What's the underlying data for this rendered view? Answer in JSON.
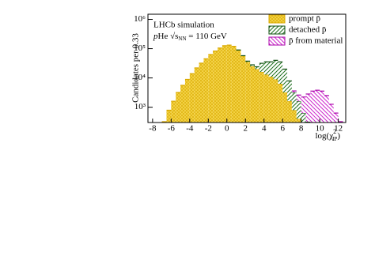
{
  "chart_data": {
    "type": "stacked_histogram",
    "annotation_lines": [
      [
        "LHCb simulation"
      ],
      [
        "p",
        "He ",
        "√s",
        "NN",
        " = 110 GeV"
      ]
    ],
    "x_label": [
      "log(χ",
      "2",
      "IP",
      ")"
    ],
    "y_label": "Candidates per 0.33",
    "bins": [
      -7,
      -6.5,
      -6,
      -5.5,
      -5,
      -4.5,
      -4,
      -3.5,
      -3,
      -2.5,
      -2,
      -1.5,
      -1,
      -0.5,
      0,
      0.5,
      1,
      1.5,
      2,
      2.5,
      3,
      3.5,
      4,
      4.5,
      5,
      5.5,
      6,
      6.5,
      7,
      7.5,
      8,
      8.5,
      9,
      9.5,
      10,
      10.5,
      11,
      11.5,
      12,
      12.5
    ],
    "series": [
      {
        "name": "prompt p̄",
        "color": "#f5d547",
        "edge": "#d9a800",
        "pattern": "cross",
        "values": [
          320,
          790,
          1600,
          3200,
          5600,
          8900,
          14000,
          22000,
          32000,
          45000,
          63000,
          83000,
          105000,
          126000,
          132000,
          120000,
          89000,
          56000,
          35000,
          25000,
          20000,
          16000,
          13000,
          11000,
          8900,
          6300,
          3200,
          1600,
          790,
          400,
          0,
          0,
          0,
          0,
          0,
          0,
          0,
          0,
          0
        ]
      },
      {
        "name": "detached p̄",
        "color": "#1a6e1a",
        "edge": "#0d4d0d",
        "pattern": "diag",
        "values": [
          0,
          0,
          0,
          0,
          0,
          0,
          0,
          0,
          0,
          0,
          0,
          0,
          0,
          0,
          0,
          0,
          1000,
          1500,
          2500,
          3000,
          4000,
          15600,
          22500,
          24500,
          31000,
          29000,
          16800,
          6300,
          2400,
          1200,
          630,
          320,
          0,
          0,
          0,
          0,
          0,
          0,
          0
        ]
      },
      {
        "name": "p̄ from material",
        "color": "#cc22cc",
        "edge": "#aa00aa",
        "pattern": "diag",
        "values": [
          0,
          0,
          0,
          0,
          0,
          0,
          0,
          0,
          0,
          0,
          0,
          0,
          0,
          0,
          0,
          0,
          0,
          0,
          0,
          0,
          0,
          0,
          0,
          0,
          0,
          0,
          0,
          0,
          400,
          1000,
          1600,
          2500,
          3550,
          3800,
          3550,
          2500,
          1260,
          630,
          320
        ]
      }
    ],
    "xlim": [
      -8.5,
      12.8
    ],
    "xticks": [
      -8,
      -6,
      -4,
      -2,
      0,
      2,
      4,
      6,
      8,
      10,
      12
    ],
    "ylim": [
      300,
      1500000
    ],
    "log_y": true,
    "yticks": [
      {
        "value": 1000,
        "label": "10³"
      },
      {
        "value": 10000,
        "label": "10⁴"
      },
      {
        "value": 100000,
        "label": "10⁵"
      },
      {
        "value": 1000000,
        "label": "10⁶"
      }
    ],
    "legend": "top-right"
  }
}
